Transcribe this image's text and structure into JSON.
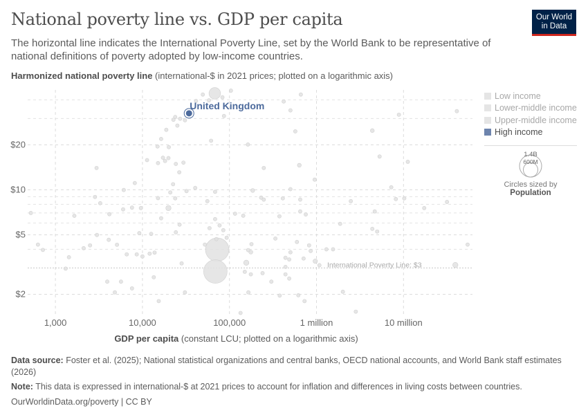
{
  "header": {
    "title": "National poverty line vs. GDP per capita",
    "subtitle": "The horizontal line indicates the International Poverty Line, set by the World Bank to be representative of national definitions of poverty adopted by low-income countries.",
    "logo": "Our World in Data"
  },
  "legend": {
    "items": [
      {
        "label": "Low income",
        "color": "#e5e5e5",
        "active": false
      },
      {
        "label": "Lower-middle income",
        "color": "#e5e5e5",
        "active": false
      },
      {
        "label": "Upper-middle income",
        "color": "#e5e5e5",
        "active": false
      },
      {
        "label": "High income",
        "color": "#6d84ad",
        "active": true
      }
    ],
    "size_large": "1.4B",
    "size_small": "600M",
    "size_caption": "Circles sized by",
    "size_variable": "Population"
  },
  "footer": {
    "source_label": "Data source:",
    "source": "Foster et al. (2025); National statistical organizations and central banks, OECD national accounts, and World Bank staff estimates (2026)",
    "note_label": "Note:",
    "note": "This data is expressed in international-$ at 2021 prices to account for inflation and differences in living costs between countries.",
    "credit": "OurWorldinData.org/poverty | CC BY"
  },
  "chart_data": {
    "type": "scatter",
    "title": "National poverty line vs. GDP per capita",
    "ylabel_bold": "Harmonized national poverty line",
    "ylabel_rest": " (international-$ in 2021 prices; plotted on a logarithmic axis)",
    "xlabel_bold": "GDP per capita",
    "xlabel_rest": " (constant LCU; plotted on a logarithmic axis)",
    "x_scale": "log",
    "y_scale": "log",
    "xlim": [
      480,
      62000000
    ],
    "ylim": [
      1.46,
      46.6
    ],
    "x_ticks": [
      {
        "v": 1000,
        "label": "1,000"
      },
      {
        "v": 10000,
        "label": "10,000"
      },
      {
        "v": 100000,
        "label": "100,000"
      },
      {
        "v": 1000000,
        "label": "1 million"
      },
      {
        "v": 10000000,
        "label": "10 million"
      }
    ],
    "y_ticks": [
      {
        "v": 2,
        "label": "$2"
      },
      {
        "v": 5,
        "label": "$5"
      },
      {
        "v": 10,
        "label": "$10"
      },
      {
        "v": 20,
        "label": "$20"
      }
    ],
    "y_minor_grid": [
      3,
      4,
      6,
      7,
      8,
      9,
      30,
      40
    ],
    "grid": true,
    "reference_line": {
      "y": 3,
      "label": "International Poverty Line: $3"
    },
    "highlight": {
      "name": "United Kingdom",
      "x": 34300,
      "y": 32.5,
      "population_millions": 69,
      "color": "#4c6a9c"
    },
    "point_color": "#e2e2e2",
    "points": [
      [
        67800,
        44.2,
        340
      ],
      [
        49400,
        43.4,
        5
      ],
      [
        41300,
        39.3,
        20
      ],
      [
        58100,
        39.7,
        8
      ],
      [
        83000,
        41.6,
        5
      ],
      [
        104000,
        46.1,
        5
      ],
      [
        661000,
        43.4,
        5
      ],
      [
        420000,
        39,
        5
      ],
      [
        502000,
        34,
        5
      ],
      [
        41000000,
        33.6,
        15
      ],
      [
        8850000,
        31.8,
        5
      ],
      [
        86500,
        31.2,
        5
      ],
      [
        23800,
        30.7,
        5
      ],
      [
        27100,
        29.9,
        5
      ],
      [
        30800,
        29.2,
        15
      ],
      [
        22700,
        29.4,
        5
      ],
      [
        25200,
        26.9,
        15
      ],
      [
        18800,
        25.2,
        5
      ],
      [
        571000,
        24.6,
        5
      ],
      [
        4380000,
        24.9,
        40
      ],
      [
        16400,
        21.9,
        5
      ],
      [
        61500,
        21.3,
        10
      ],
      [
        14900,
        19.5,
        5
      ],
      [
        20100,
        19.3,
        5
      ],
      [
        163000,
        20.1,
        5
      ],
      [
        11300,
        15.8,
        5
      ],
      [
        15100,
        15.1,
        12
      ],
      [
        17200,
        16.4,
        5
      ],
      [
        18200,
        15.6,
        5
      ],
      [
        19900,
        16.3,
        5
      ],
      [
        24200,
        14.9,
        5
      ],
      [
        29600,
        15.2,
        5
      ],
      [
        26500,
        13.1,
        5
      ],
      [
        2970,
        14.0,
        5
      ],
      [
        248000,
        14.0,
        5
      ],
      [
        635000,
        14.6,
        40
      ],
      [
        5310000,
        16.7,
        5
      ],
      [
        11200000,
        15.4,
        5
      ],
      [
        953000,
        11.7,
        5
      ],
      [
        8170,
        11.1,
        5
      ],
      [
        22500,
        10.9,
        5
      ],
      [
        6100,
        9.97,
        5
      ],
      [
        40400,
        10.3,
        12
      ],
      [
        185000,
        9.9,
        40
      ],
      [
        20900,
        9.6,
        5
      ],
      [
        32100,
        9.8,
        5
      ],
      [
        68400,
        9.7,
        5
      ],
      [
        502000,
        10.1,
        5
      ],
      [
        7230000,
        10.4,
        5
      ],
      [
        2850,
        8.96,
        5
      ],
      [
        23800,
        8.77,
        25
      ],
      [
        15100,
        8.8,
        5
      ],
      [
        3270,
        8.14,
        5
      ],
      [
        55700,
        8.4,
        5
      ],
      [
        231000,
        8.87,
        5
      ],
      [
        248000,
        8.6,
        5
      ],
      [
        410000,
        8.77,
        5
      ],
      [
        650000,
        8.6,
        5
      ],
      [
        2480000,
        8.4,
        5
      ],
      [
        8170000,
        8.67,
        5
      ],
      [
        10200000,
        8.77,
        5
      ],
      [
        31600000,
        8.3,
        5
      ],
      [
        17300000,
        7.55,
        12
      ],
      [
        522,
        7.0,
        10
      ],
      [
        1650,
        6.7,
        5
      ],
      [
        4170,
        6.87,
        5
      ],
      [
        6000,
        7.4,
        5
      ],
      [
        7590,
        7.6,
        5
      ],
      [
        9600,
        7.55,
        5
      ],
      [
        19900,
        7.55,
        70
      ],
      [
        16400,
        6.45,
        5
      ],
      [
        68400,
        6.37,
        30
      ],
      [
        116000,
        6.92,
        5
      ],
      [
        144000,
        6.71,
        15
      ],
      [
        375000,
        6.65,
        5
      ],
      [
        650000,
        7.17,
        5
      ],
      [
        753000,
        6.84,
        5
      ],
      [
        4670000,
        7.17,
        10
      ],
      [
        26700,
        5.85,
        5
      ],
      [
        59000,
        5.54,
        10
      ],
      [
        77000,
        5.78,
        15
      ],
      [
        85000,
        5.37,
        5
      ],
      [
        1870000,
        5.92,
        5
      ],
      [
        4380000,
        5.48,
        10
      ],
      [
        4980000,
        5.26,
        5
      ],
      [
        24200,
        5.2,
        5
      ],
      [
        9200,
        5.13,
        5
      ],
      [
        12600,
        5.07,
        5
      ],
      [
        3000,
        4.99,
        5
      ],
      [
        92900,
        4.78,
        5
      ],
      [
        70600,
        4.68,
        5
      ],
      [
        337000,
        4.72,
        5
      ],
      [
        630,
        4.3,
        5
      ],
      [
        4100,
        4.63,
        5
      ],
      [
        5100,
        4.29,
        5
      ],
      [
        2500,
        4.25,
        5
      ],
      [
        2110,
        4.07,
        5
      ],
      [
        718,
        3.96,
        5
      ],
      [
        72300,
        3.98,
        1400
      ],
      [
        52200,
        4.3,
        5
      ],
      [
        179000,
        4.33,
        15
      ],
      [
        164000,
        3.95,
        25
      ],
      [
        176000,
        3.83,
        40
      ],
      [
        596000,
        4.48,
        5
      ],
      [
        822000,
        4.25,
        5
      ],
      [
        857000,
        3.9,
        5
      ],
      [
        1300000,
        4.0,
        10
      ],
      [
        1550000,
        4.0,
        15
      ],
      [
        54500000,
        4.3,
        25
      ],
      [
        12100,
        3.74,
        10
      ],
      [
        13800,
        3.8,
        5
      ],
      [
        6600,
        3.7,
        5
      ],
      [
        8600,
        3.7,
        5
      ],
      [
        10000,
        3.58,
        5
      ],
      [
        1430,
        3.54,
        5
      ],
      [
        502000,
        3.82,
        5
      ],
      [
        440000,
        3.51,
        5
      ],
      [
        486000,
        3.42,
        5
      ],
      [
        711000,
        3.47,
        5
      ],
      [
        156000,
        3.25,
        70
      ],
      [
        968000,
        3.33,
        50
      ],
      [
        39400000,
        3.14,
        70
      ],
      [
        28200,
        3.22,
        5
      ],
      [
        68900,
        2.84,
        1400
      ],
      [
        1310,
        2.97,
        5
      ],
      [
        13500,
        2.6,
        25
      ],
      [
        150000,
        2.83,
        5
      ],
      [
        176000,
        2.72,
        10
      ],
      [
        240000,
        2.77,
        5
      ],
      [
        440000,
        3.05,
        5
      ],
      [
        440000,
        2.72,
        5
      ],
      [
        486000,
        2.55,
        10
      ],
      [
        303000,
        2.43,
        5
      ],
      [
        3940,
        2.43,
        5
      ],
      [
        5670,
        2.43,
        5
      ],
      [
        7590,
        2.19,
        5
      ],
      [
        4820,
        2.06,
        5
      ],
      [
        30800,
        2.06,
        10
      ],
      [
        165000,
        2.06,
        5
      ],
      [
        2010000,
        2.08,
        15
      ],
      [
        378000,
        1.96,
        5
      ],
      [
        619000,
        1.97,
        5
      ],
      [
        729000,
        1.8,
        5
      ],
      [
        15400,
        1.8,
        5
      ],
      [
        134000,
        1.5,
        25
      ],
      [
        2830000,
        1.53,
        15
      ],
      [
        1080000,
        3.13,
        5
      ]
    ]
  }
}
